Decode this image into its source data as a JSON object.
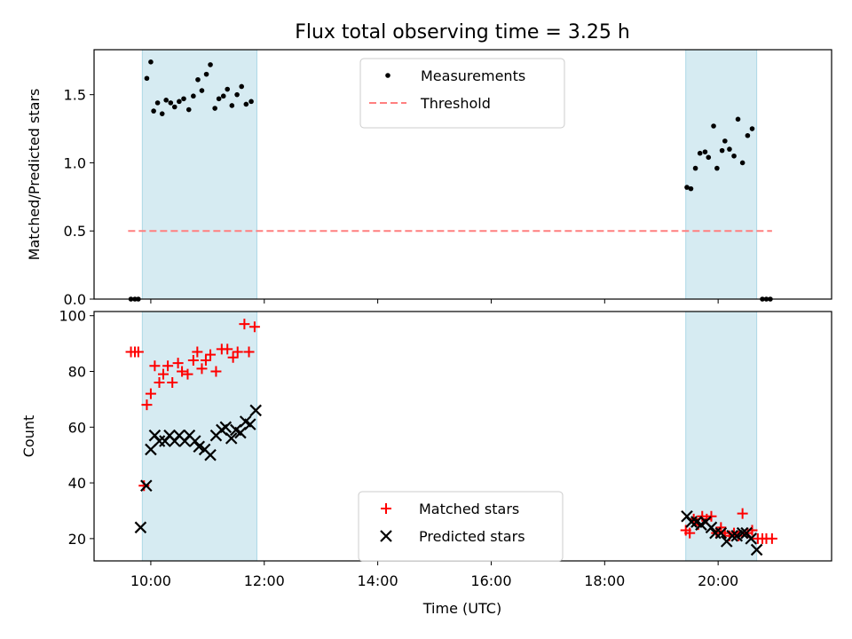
{
  "chart_data": {
    "title": "Flux total observing time = 3.25 h",
    "xlabel": "Time (UTC)",
    "x_units": "hours UTC",
    "xlim": [
      9.0,
      22.0
    ],
    "x_ticks": [
      10,
      12,
      14,
      16,
      18,
      20
    ],
    "x_tick_labels": [
      "10:00",
      "12:00",
      "14:00",
      "16:00",
      "18:00",
      "20:00"
    ],
    "shaded_intervals": [
      [
        9.85,
        11.87
      ],
      [
        19.43,
        20.68
      ]
    ],
    "shade_color": "#add8e6",
    "panels": [
      {
        "type": "scatter",
        "ylabel": "Matched/Predicted stars",
        "ylim": [
          0,
          1.83
        ],
        "y_ticks": [
          0.0,
          0.5,
          1.0,
          1.5
        ],
        "y_tick_labels": [
          "0.0",
          "0.5",
          "1.0",
          "1.5"
        ],
        "legend_position": "upper-center",
        "series": [
          {
            "name": "Measurements",
            "marker": "dot",
            "color": "#000000",
            "points": [
              [
                9.65,
                0.0
              ],
              [
                9.72,
                0.0
              ],
              [
                9.78,
                0.0
              ],
              [
                9.93,
                1.62
              ],
              [
                10.0,
                1.74
              ],
              [
                10.05,
                1.38
              ],
              [
                10.12,
                1.44
              ],
              [
                10.2,
                1.36
              ],
              [
                10.27,
                1.46
              ],
              [
                10.35,
                1.44
              ],
              [
                10.42,
                1.41
              ],
              [
                10.5,
                1.45
              ],
              [
                10.58,
                1.47
              ],
              [
                10.67,
                1.39
              ],
              [
                10.75,
                1.49
              ],
              [
                10.83,
                1.61
              ],
              [
                10.9,
                1.53
              ],
              [
                10.98,
                1.65
              ],
              [
                11.05,
                1.72
              ],
              [
                11.13,
                1.4
              ],
              [
                11.2,
                1.47
              ],
              [
                11.28,
                1.49
              ],
              [
                11.35,
                1.54
              ],
              [
                11.43,
                1.42
              ],
              [
                11.52,
                1.5
              ],
              [
                11.6,
                1.56
              ],
              [
                11.68,
                1.43
              ],
              [
                11.77,
                1.45
              ],
              [
                19.45,
                0.82
              ],
              [
                19.52,
                0.81
              ],
              [
                19.6,
                0.96
              ],
              [
                19.68,
                1.07
              ],
              [
                19.77,
                1.08
              ],
              [
                19.83,
                1.04
              ],
              [
                19.92,
                1.27
              ],
              [
                19.98,
                0.96
              ],
              [
                20.07,
                1.09
              ],
              [
                20.12,
                1.16
              ],
              [
                20.2,
                1.1
              ],
              [
                20.28,
                1.05
              ],
              [
                20.35,
                1.32
              ],
              [
                20.43,
                1.0
              ],
              [
                20.52,
                1.2
              ],
              [
                20.6,
                1.25
              ],
              [
                20.78,
                0.0
              ],
              [
                20.85,
                0.0
              ],
              [
                20.92,
                0.0
              ]
            ]
          },
          {
            "name": "Threshold",
            "line": "dashed",
            "color": "#ff7f7f",
            "points": [
              [
                9.6,
                0.5
              ],
              [
                20.95,
                0.5
              ]
            ]
          }
        ]
      },
      {
        "type": "scatter",
        "ylabel": "Count",
        "ylim": [
          12,
          101.5
        ],
        "y_ticks": [
          20,
          40,
          60,
          80,
          100
        ],
        "y_tick_labels": [
          "20",
          "40",
          "60",
          "80",
          "100"
        ],
        "legend_position": "lower-center",
        "series": [
          {
            "name": "Matched stars",
            "marker": "plus",
            "color": "#ff0000",
            "points": [
              [
                9.65,
                87
              ],
              [
                9.72,
                87
              ],
              [
                9.78,
                87
              ],
              [
                9.88,
                39
              ],
              [
                9.93,
                68
              ],
              [
                10.0,
                72
              ],
              [
                10.07,
                82
              ],
              [
                10.15,
                76
              ],
              [
                10.22,
                79
              ],
              [
                10.3,
                82
              ],
              [
                10.38,
                76
              ],
              [
                10.48,
                83
              ],
              [
                10.55,
                80
              ],
              [
                10.65,
                79
              ],
              [
                10.75,
                84
              ],
              [
                10.82,
                87
              ],
              [
                10.9,
                81
              ],
              [
                10.97,
                84
              ],
              [
                11.05,
                86
              ],
              [
                11.15,
                80
              ],
              [
                11.25,
                88
              ],
              [
                11.35,
                88
              ],
              [
                11.45,
                85
              ],
              [
                11.53,
                87
              ],
              [
                11.65,
                97
              ],
              [
                11.73,
                87
              ],
              [
                11.83,
                96
              ],
              [
                19.43,
                23
              ],
              [
                19.5,
                22
              ],
              [
                19.57,
                27
              ],
              [
                19.65,
                25
              ],
              [
                19.72,
                28
              ],
              [
                19.8,
                27
              ],
              [
                19.88,
                28
              ],
              [
                19.97,
                22
              ],
              [
                20.05,
                24
              ],
              [
                20.12,
                22
              ],
              [
                20.2,
                21
              ],
              [
                20.28,
                22
              ],
              [
                20.36,
                21
              ],
              [
                20.43,
                29
              ],
              [
                20.52,
                22
              ],
              [
                20.6,
                23
              ],
              [
                20.7,
                20
              ],
              [
                20.78,
                20
              ],
              [
                20.85,
                20
              ],
              [
                20.95,
                20
              ]
            ]
          },
          {
            "name": "Predicted stars",
            "marker": "x",
            "color": "#000000",
            "points": [
              [
                9.82,
                24
              ],
              [
                9.92,
                39
              ],
              [
                10.0,
                52
              ],
              [
                10.07,
                57
              ],
              [
                10.15,
                55
              ],
              [
                10.25,
                55
              ],
              [
                10.33,
                57
              ],
              [
                10.42,
                55
              ],
              [
                10.5,
                57
              ],
              [
                10.6,
                55
              ],
              [
                10.68,
                57
              ],
              [
                10.78,
                55
              ],
              [
                10.85,
                53
              ],
              [
                10.95,
                52
              ],
              [
                11.05,
                50
              ],
              [
                11.15,
                57
              ],
              [
                11.25,
                59
              ],
              [
                11.32,
                60
              ],
              [
                11.42,
                56
              ],
              [
                11.5,
                59
              ],
              [
                11.58,
                58
              ],
              [
                11.67,
                62
              ],
              [
                11.75,
                61
              ],
              [
                11.85,
                66
              ],
              [
                19.45,
                28
              ],
              [
                19.53,
                26
              ],
              [
                19.62,
                26
              ],
              [
                19.7,
                25
              ],
              [
                19.78,
                26
              ],
              [
                19.88,
                24
              ],
              [
                19.95,
                22
              ],
              [
                20.05,
                22
              ],
              [
                20.15,
                19
              ],
              [
                20.25,
                21
              ],
              [
                20.33,
                21
              ],
              [
                20.43,
                22
              ],
              [
                20.5,
                22
              ],
              [
                20.58,
                20
              ],
              [
                20.68,
                16
              ]
            ]
          }
        ]
      }
    ]
  }
}
